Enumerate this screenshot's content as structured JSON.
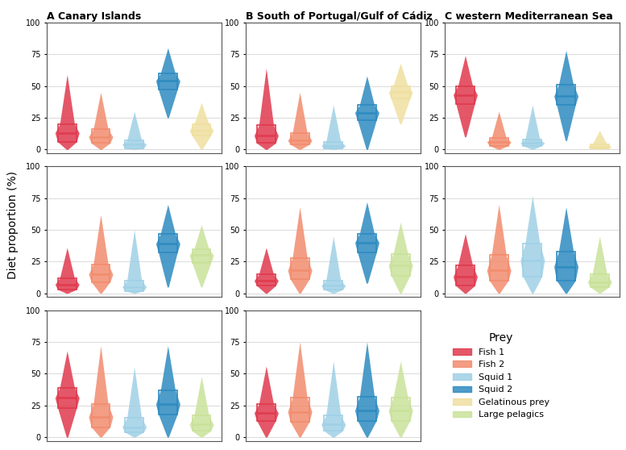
{
  "ylabel": "Diet proportion (%)",
  "legend_title": "Prey",
  "chart_data": [
    {
      "type": "violin",
      "title": "A Canary Islands",
      "ylim": [
        -3,
        100
      ],
      "yticks": [
        0,
        25,
        50,
        75,
        100
      ],
      "grid": true,
      "tick_labels": "y",
      "series": [
        {
          "name": "Fish 1",
          "color": "#e03a4e",
          "values": {
            "min": 0,
            "q1": 6,
            "median": 13,
            "q3": 20,
            "max": 59
          }
        },
        {
          "name": "Fish 2",
          "color": "#f28c6e",
          "values": {
            "min": 0,
            "q1": 5,
            "median": 10,
            "q3": 16,
            "max": 45
          }
        },
        {
          "name": "Squid 1",
          "color": "#9fd0e6",
          "values": {
            "min": 0,
            "q1": 1,
            "median": 4,
            "q3": 7,
            "max": 30
          }
        },
        {
          "name": "Squid 2",
          "color": "#2e8bc0",
          "values": {
            "min": 25,
            "q1": 47,
            "median": 54,
            "q3": 60,
            "max": 80
          }
        },
        {
          "name": "Gelatinous prey",
          "color": "#efe0a0",
          "values": {
            "min": 0,
            "q1": 11,
            "median": 15,
            "q3": 20,
            "max": 37
          }
        }
      ]
    },
    {
      "type": "violin",
      "title": "B South of Portugal/Gulf of Cádiz",
      "ylim": [
        -3,
        100
      ],
      "yticks": [
        0,
        25,
        50,
        75,
        100
      ],
      "grid": true,
      "tick_labels": "y",
      "series": [
        {
          "name": "Fish 1",
          "color": "#e03a4e",
          "values": {
            "min": 0,
            "q1": 5,
            "median": 11,
            "q3": 19,
            "max": 64
          }
        },
        {
          "name": "Fish 2",
          "color": "#f28c6e",
          "values": {
            "min": 0,
            "q1": 4,
            "median": 7,
            "q3": 13,
            "max": 45
          }
        },
        {
          "name": "Squid 1",
          "color": "#9fd0e6",
          "values": {
            "min": 0,
            "q1": 1,
            "median": 3,
            "q3": 6,
            "max": 35
          }
        },
        {
          "name": "Squid 2",
          "color": "#2e8bc0",
          "values": {
            "min": 0,
            "q1": 23,
            "median": 29,
            "q3": 35,
            "max": 58
          }
        },
        {
          "name": "Gelatinous prey",
          "color": "#efe0a0",
          "values": {
            "min": 20,
            "q1": 40,
            "median": 45,
            "q3": 50,
            "max": 68
          }
        }
      ]
    },
    {
      "type": "violin",
      "title": "C western Mediterranean Sea",
      "ylim": [
        -3,
        100
      ],
      "yticks": [
        0,
        25,
        50,
        75,
        100
      ],
      "grid": true,
      "tick_labels": "y",
      "series": [
        {
          "name": "Fish 1",
          "color": "#e03a4e",
          "values": {
            "min": 10,
            "q1": 36,
            "median": 43,
            "q3": 50,
            "max": 74
          }
        },
        {
          "name": "Fish 2",
          "color": "#f28c6e",
          "values": {
            "min": 0,
            "q1": 3,
            "median": 6,
            "q3": 9,
            "max": 30
          }
        },
        {
          "name": "Squid 1",
          "color": "#9fd0e6",
          "values": {
            "min": 0,
            "q1": 3,
            "median": 5,
            "q3": 8,
            "max": 35
          }
        },
        {
          "name": "Squid 2",
          "color": "#2e8bc0",
          "values": {
            "min": 7,
            "q1": 35,
            "median": 42,
            "q3": 51,
            "max": 78
          }
        },
        {
          "name": "Gelatinous prey",
          "color": "#efe0a0",
          "values": {
            "min": 0,
            "q1": 1,
            "median": 2,
            "q3": 4,
            "max": 15
          }
        }
      ]
    },
    {
      "type": "violin",
      "ylim": [
        -3,
        100
      ],
      "yticks": [
        0,
        25,
        50,
        75,
        100
      ],
      "grid": true,
      "tick_labels": "y",
      "series": [
        {
          "name": "Fish 1",
          "color": "#e03a4e",
          "values": {
            "min": 0,
            "q1": 3,
            "median": 7,
            "q3": 12,
            "max": 36
          }
        },
        {
          "name": "Fish 2",
          "color": "#f28c6e",
          "values": {
            "min": 0,
            "q1": 9,
            "median": 15,
            "q3": 23,
            "max": 62
          }
        },
        {
          "name": "Squid 1",
          "color": "#9fd0e6",
          "values": {
            "min": 0,
            "q1": 2,
            "median": 5,
            "q3": 10,
            "max": 50
          }
        },
        {
          "name": "Squid 2",
          "color": "#2e8bc0",
          "values": {
            "min": 5,
            "q1": 32,
            "median": 39,
            "q3": 47,
            "max": 70
          }
        },
        {
          "name": "Large pelagics",
          "color": "#c9e29a",
          "values": {
            "min": 5,
            "q1": 24,
            "median": 30,
            "q3": 35,
            "max": 54
          }
        }
      ]
    },
    {
      "type": "violin",
      "ylim": [
        -3,
        100
      ],
      "yticks": [
        0,
        25,
        50,
        75,
        100
      ],
      "grid": true,
      "tick_labels": "y",
      "series": [
        {
          "name": "Fish 1",
          "color": "#e03a4e",
          "values": {
            "min": 0,
            "q1": 6,
            "median": 10,
            "q3": 15,
            "max": 36
          }
        },
        {
          "name": "Fish 2",
          "color": "#f28c6e",
          "values": {
            "min": 0,
            "q1": 11,
            "median": 18,
            "q3": 28,
            "max": 68
          }
        },
        {
          "name": "Squid 1",
          "color": "#9fd0e6",
          "values": {
            "min": 0,
            "q1": 3,
            "median": 6,
            "q3": 10,
            "max": 45
          }
        },
        {
          "name": "Squid 2",
          "color": "#2e8bc0",
          "values": {
            "min": 8,
            "q1": 32,
            "median": 40,
            "q3": 47,
            "max": 72
          }
        },
        {
          "name": "Large pelagics",
          "color": "#c9e29a",
          "values": {
            "min": 0,
            "q1": 14,
            "median": 22,
            "q3": 31,
            "max": 56
          }
        }
      ]
    },
    {
      "type": "violin",
      "ylim": [
        -3,
        100
      ],
      "yticks": [
        0,
        25,
        50,
        75,
        100
      ],
      "grid": true,
      "tick_labels": "y",
      "series": [
        {
          "name": "Fish 1",
          "color": "#e03a4e",
          "values": {
            "min": 0,
            "q1": 6,
            "median": 13,
            "q3": 22,
            "max": 47
          }
        },
        {
          "name": "Fish 2",
          "color": "#f28c6e",
          "values": {
            "min": 0,
            "q1": 10,
            "median": 18,
            "q3": 30,
            "max": 70
          }
        },
        {
          "name": "Squid 1",
          "color": "#9fd0e6",
          "values": {
            "min": 0,
            "q1": 13,
            "median": 26,
            "q3": 39,
            "max": 77
          }
        },
        {
          "name": "Squid 2",
          "color": "#2e8bc0",
          "values": {
            "min": 0,
            "q1": 10,
            "median": 21,
            "q3": 33,
            "max": 68
          }
        },
        {
          "name": "Large pelagics",
          "color": "#c9e29a",
          "values": {
            "min": 0,
            "q1": 5,
            "median": 9,
            "q3": 15,
            "max": 45
          }
        }
      ]
    },
    {
      "type": "violin",
      "ylim": [
        -3,
        100
      ],
      "yticks": [
        0,
        25,
        50,
        75,
        100
      ],
      "grid": true,
      "tick_labels": "y",
      "series": [
        {
          "name": "Fish 1",
          "color": "#e03a4e",
          "values": {
            "min": 0,
            "q1": 23,
            "median": 31,
            "q3": 39,
            "max": 68
          }
        },
        {
          "name": "Fish 2",
          "color": "#f28c6e",
          "values": {
            "min": 0,
            "q1": 8,
            "median": 16,
            "q3": 26,
            "max": 72
          }
        },
        {
          "name": "Squid 1",
          "color": "#9fd0e6",
          "values": {
            "min": 0,
            "q1": 4,
            "median": 8,
            "q3": 15,
            "max": 55
          }
        },
        {
          "name": "Squid 2",
          "color": "#2e8bc0",
          "values": {
            "min": 0,
            "q1": 18,
            "median": 26,
            "q3": 37,
            "max": 72
          }
        },
        {
          "name": "Large pelagics",
          "color": "#c9e29a",
          "values": {
            "min": 0,
            "q1": 5,
            "median": 10,
            "q3": 17,
            "max": 48
          }
        }
      ]
    },
    {
      "type": "violin",
      "ylim": [
        -3,
        100
      ],
      "yticks": [
        0,
        25,
        50,
        75,
        100
      ],
      "grid": true,
      "tick_labels": "y",
      "series": [
        {
          "name": "Fish 1",
          "color": "#e03a4e",
          "values": {
            "min": 0,
            "q1": 13,
            "median": 19,
            "q3": 26,
            "max": 56
          }
        },
        {
          "name": "Fish 2",
          "color": "#f28c6e",
          "values": {
            "min": 0,
            "q1": 12,
            "median": 20,
            "q3": 31,
            "max": 75
          }
        },
        {
          "name": "Squid 1",
          "color": "#9fd0e6",
          "values": {
            "min": 0,
            "q1": 5,
            "median": 10,
            "q3": 17,
            "max": 60
          }
        },
        {
          "name": "Squid 2",
          "color": "#2e8bc0",
          "values": {
            "min": 0,
            "q1": 13,
            "median": 21,
            "q3": 32,
            "max": 75
          }
        },
        {
          "name": "Large pelagics",
          "color": "#c9e29a",
          "values": {
            "min": 0,
            "q1": 13,
            "median": 21,
            "q3": 31,
            "max": 60
          }
        }
      ]
    }
  ]
}
